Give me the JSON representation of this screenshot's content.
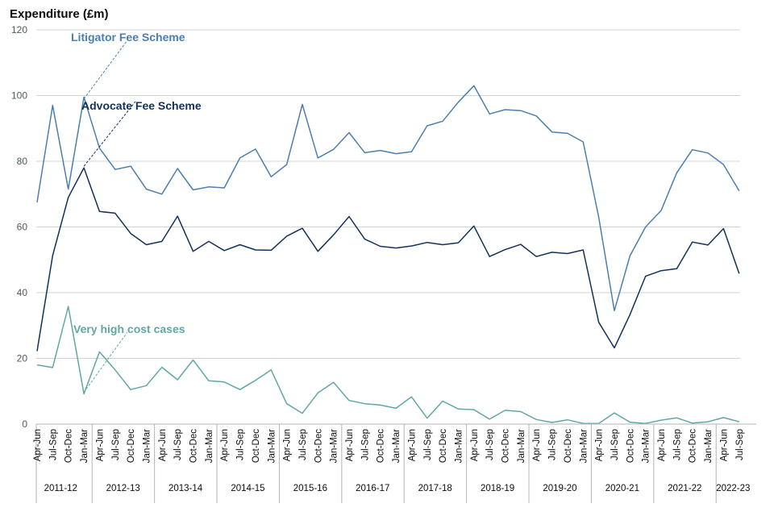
{
  "chart_data": {
    "type": "line",
    "ylabel": "Expenditure (£m)",
    "ylim": [
      0,
      120
    ],
    "yticks": [
      0,
      20,
      40,
      60,
      80,
      100,
      120
    ],
    "grid": true,
    "categories": [
      "Apr-Jun",
      "Jul-Sep",
      "Oct-Dec",
      "Jan-Mar",
      "Apr-Jun",
      "Jul-Sep",
      "Oct-Dec",
      "Jan-Mar",
      "Apr-Jun",
      "Jul-Sep",
      "Oct-Dec",
      "Jan-Mar",
      "Apr-Jun",
      "Jul-Sep",
      "Oct-Dec",
      "Jan-Mar",
      "Apr-Jun",
      "Jul-Sep",
      "Oct-Dec",
      "Jan-Mar",
      "Apr-Jun",
      "Jul-Sep",
      "Oct-Dec",
      "Jan-Mar",
      "Apr-Jun",
      "Jul-Sep",
      "Oct-Dec",
      "Jan-Mar",
      "Apr-Jun",
      "Jul-Sep",
      "Oct-Dec",
      "Jan-Mar",
      "Apr-Jun",
      "Jul-Sep",
      "Oct-Dec",
      "Jan-Mar",
      "Apr-Jun",
      "Jul-Sep",
      "Oct-Dec",
      "Jan-Mar",
      "Apr-Jun",
      "Jul-Sep",
      "Oct-Dec",
      "Jan-Mar",
      "Apr-Jun",
      "Jul-Sep"
    ],
    "financial_years": [
      "2011-12",
      "2012-13",
      "2013-14",
      "2014-15",
      "2015-16",
      "2016-17",
      "2017-18",
      "2018-19",
      "2019-20",
      "2020-21",
      "2021-22",
      "2022-23"
    ],
    "series": [
      {
        "name": "Litigator Fee Scheme",
        "color": "#4a7fb0",
        "values": [
          67.5,
          97,
          71.5,
          99.5,
          84,
          77.5,
          78.5,
          71.5,
          70,
          77.8,
          71.3,
          72.2,
          71.9,
          81,
          83.7,
          75.3,
          79,
          97.3,
          81,
          83.6,
          88.7,
          82.6,
          83.3,
          82.3,
          82.9,
          90.8,
          92.2,
          98,
          103,
          94.4,
          95.7,
          95.4,
          93.8,
          88.9,
          88.5,
          85.9,
          63,
          34.5,
          51.2,
          60,
          65,
          76.5,
          83.5,
          82.5,
          79,
          71
        ]
      },
      {
        "name": "Advocate Fee Scheme",
        "color": "#12325a",
        "values": [
          22.2,
          51.3,
          69,
          78,
          64.7,
          64.2,
          58,
          54.6,
          55.6,
          63.3,
          52.6,
          55.6,
          52.8,
          54.6,
          53,
          52.9,
          57.2,
          59.6,
          52.6,
          57.6,
          63.2,
          56.3,
          54.1,
          53.6,
          54.2,
          55.3,
          54.6,
          55.2,
          60.3,
          51,
          53.1,
          54.7,
          51,
          52.3,
          51.9,
          53,
          31,
          23.2,
          33.3,
          45,
          46.7,
          47.3,
          55.4,
          54.5,
          59.5,
          45.8
        ]
      },
      {
        "name": "Very high cost cases",
        "color": "#5fa8a4",
        "values": [
          18,
          17.2,
          35.8,
          9.2,
          22,
          16.5,
          10.5,
          11.7,
          17.3,
          13.5,
          19.5,
          13.2,
          12.8,
          10.5,
          13.3,
          16.5,
          6.2,
          3.3,
          9.5,
          12.7,
          7.2,
          6.2,
          5.8,
          4.8,
          8.3,
          1.8,
          7,
          4.6,
          4.4,
          1.5,
          4.2,
          3.8,
          1.4,
          0.5,
          1.3,
          0.2,
          0.2,
          3.4,
          0.6,
          0.2,
          1.2,
          1.9,
          0.3,
          0.7,
          2,
          0.7
        ]
      }
    ]
  }
}
